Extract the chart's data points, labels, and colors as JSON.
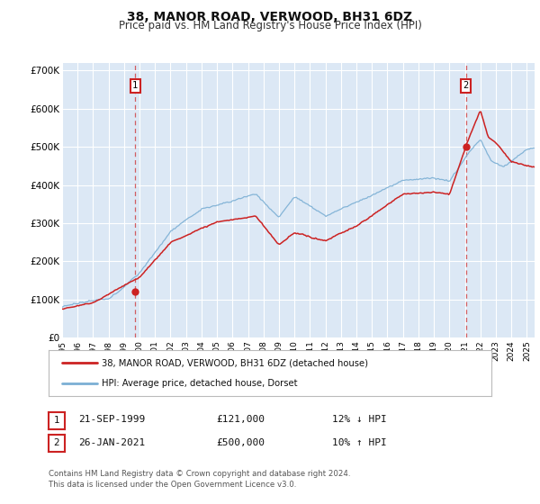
{
  "title": "38, MANOR ROAD, VERWOOD, BH31 6DZ",
  "subtitle": "Price paid vs. HM Land Registry's House Price Index (HPI)",
  "title_fontsize": 10,
  "subtitle_fontsize": 8.5,
  "xlim": [
    1995.0,
    2025.5
  ],
  "ylim": [
    0,
    720000
  ],
  "yticks": [
    0,
    100000,
    200000,
    300000,
    400000,
    500000,
    600000,
    700000
  ],
  "ytick_labels": [
    "£0",
    "£100K",
    "£200K",
    "£300K",
    "£400K",
    "£500K",
    "£600K",
    "£700K"
  ],
  "xtick_years": [
    1995,
    1996,
    1997,
    1998,
    1999,
    2000,
    2001,
    2002,
    2003,
    2004,
    2005,
    2006,
    2007,
    2008,
    2009,
    2010,
    2011,
    2012,
    2013,
    2014,
    2015,
    2016,
    2017,
    2018,
    2019,
    2020,
    2021,
    2022,
    2023,
    2024,
    2025
  ],
  "hpi_color": "#7bafd4",
  "sale_color": "#cc2222",
  "marker1_x": 1999.72,
  "marker1_y": 121000,
  "marker2_x": 2021.07,
  "marker2_y": 500000,
  "vline1_x": 1999.72,
  "vline2_x": 2021.07,
  "legend_label_sale": "38, MANOR ROAD, VERWOOD, BH31 6DZ (detached house)",
  "legend_label_hpi": "HPI: Average price, detached house, Dorset",
  "table_row1": [
    "1",
    "21-SEP-1999",
    "£121,000",
    "12% ↓ HPI"
  ],
  "table_row2": [
    "2",
    "26-JAN-2021",
    "£500,000",
    "10% ↑ HPI"
  ],
  "footnote": "Contains HM Land Registry data © Crown copyright and database right 2024.\nThis data is licensed under the Open Government Licence v3.0.",
  "plot_bg": "#dce8f5",
  "fig_bg": "#ffffff",
  "grid_color": "#ffffff",
  "box_color": "#cc2222"
}
